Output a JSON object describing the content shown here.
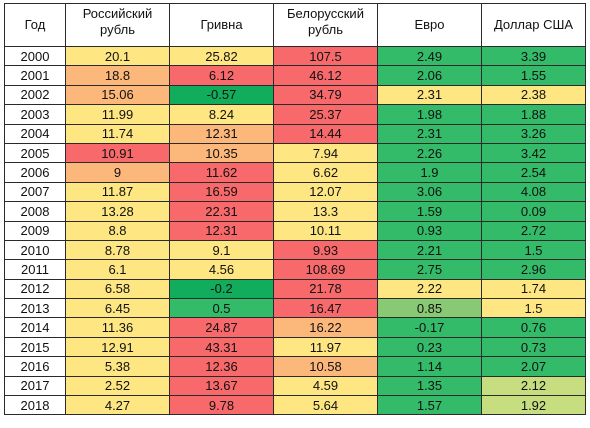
{
  "headers": [
    {
      "lines": [
        "Год"
      ]
    },
    {
      "lines": [
        "Российский",
        "рубль"
      ]
    },
    {
      "lines": [
        "Гривна"
      ]
    },
    {
      "lines": [
        "Белорусский",
        "рубль"
      ]
    },
    {
      "lines": [
        "Евро"
      ]
    },
    {
      "lines": [
        "Доллар США"
      ]
    }
  ],
  "colors": {
    "red": "#f8696b",
    "orange": "#fcb87a",
    "yellow": "#fee783",
    "light_green": "#c6dd80",
    "mid_green": "#8ac974",
    "green": "#34bb6a",
    "dark_green": "#12ad5c"
  },
  "rows": [
    {
      "year": "2000",
      "cells": [
        {
          "value": "20.1",
          "color": "yellow"
        },
        {
          "value": "25.82",
          "color": "yellow"
        },
        {
          "value": "107.5",
          "color": "red"
        },
        {
          "value": "2.49",
          "color": "green"
        },
        {
          "value": "3.39",
          "color": "green"
        }
      ]
    },
    {
      "year": "2001",
      "cells": [
        {
          "value": "18.8",
          "color": "orange"
        },
        {
          "value": "6.12",
          "color": "red"
        },
        {
          "value": "46.12",
          "color": "red"
        },
        {
          "value": "2.06",
          "color": "green"
        },
        {
          "value": "1.55",
          "color": "green"
        }
      ]
    },
    {
      "year": "2002",
      "cells": [
        {
          "value": "15.06",
          "color": "orange"
        },
        {
          "value": "-0.57",
          "color": "dark_green"
        },
        {
          "value": "34.79",
          "color": "red"
        },
        {
          "value": "2.31",
          "color": "yellow"
        },
        {
          "value": "2.38",
          "color": "yellow"
        }
      ]
    },
    {
      "year": "2003",
      "cells": [
        {
          "value": "11.99",
          "color": "yellow"
        },
        {
          "value": "8.24",
          "color": "yellow"
        },
        {
          "value": "25.37",
          "color": "red"
        },
        {
          "value": "1.98",
          "color": "green"
        },
        {
          "value": "1.88",
          "color": "green"
        }
      ]
    },
    {
      "year": "2004",
      "cells": [
        {
          "value": "11.74",
          "color": "yellow"
        },
        {
          "value": "12.31",
          "color": "orange"
        },
        {
          "value": "14.44",
          "color": "red"
        },
        {
          "value": "2.31",
          "color": "green"
        },
        {
          "value": "3.26",
          "color": "green"
        }
      ]
    },
    {
      "year": "2005",
      "cells": [
        {
          "value": "10.91",
          "color": "red"
        },
        {
          "value": "10.35",
          "color": "orange"
        },
        {
          "value": "7.94",
          "color": "yellow"
        },
        {
          "value": "2.26",
          "color": "green"
        },
        {
          "value": "3.42",
          "color": "green"
        }
      ]
    },
    {
      "year": "2006",
      "cells": [
        {
          "value": "9",
          "color": "orange"
        },
        {
          "value": "11.62",
          "color": "red"
        },
        {
          "value": "6.62",
          "color": "yellow"
        },
        {
          "value": "1.9",
          "color": "green"
        },
        {
          "value": "2.54",
          "color": "green"
        }
      ]
    },
    {
      "year": "2007",
      "cells": [
        {
          "value": "11.87",
          "color": "yellow"
        },
        {
          "value": "16.59",
          "color": "red"
        },
        {
          "value": "12.07",
          "color": "yellow"
        },
        {
          "value": "3.06",
          "color": "green"
        },
        {
          "value": "4.08",
          "color": "green"
        }
      ]
    },
    {
      "year": "2008",
      "cells": [
        {
          "value": "13.28",
          "color": "yellow"
        },
        {
          "value": "22.31",
          "color": "red"
        },
        {
          "value": "13.3",
          "color": "yellow"
        },
        {
          "value": "1.59",
          "color": "green"
        },
        {
          "value": "0.09",
          "color": "green"
        }
      ]
    },
    {
      "year": "2009",
      "cells": [
        {
          "value": "8.8",
          "color": "yellow"
        },
        {
          "value": "12.31",
          "color": "red"
        },
        {
          "value": "10.11",
          "color": "yellow"
        },
        {
          "value": "0.93",
          "color": "green"
        },
        {
          "value": "2.72",
          "color": "green"
        }
      ]
    },
    {
      "year": "2010",
      "cells": [
        {
          "value": "8.78",
          "color": "yellow"
        },
        {
          "value": "9.1",
          "color": "yellow"
        },
        {
          "value": "9.93",
          "color": "red"
        },
        {
          "value": "2.21",
          "color": "green"
        },
        {
          "value": "1.5",
          "color": "green"
        }
      ]
    },
    {
      "year": "2011",
      "cells": [
        {
          "value": "6.1",
          "color": "yellow"
        },
        {
          "value": "4.56",
          "color": "yellow"
        },
        {
          "value": "108.69",
          "color": "red"
        },
        {
          "value": "2.75",
          "color": "green"
        },
        {
          "value": "2.96",
          "color": "green"
        }
      ]
    },
    {
      "year": "2012",
      "cells": [
        {
          "value": "6.58",
          "color": "yellow"
        },
        {
          "value": "-0.2",
          "color": "dark_green"
        },
        {
          "value": "21.78",
          "color": "red"
        },
        {
          "value": "2.22",
          "color": "yellow"
        },
        {
          "value": "1.74",
          "color": "yellow"
        }
      ]
    },
    {
      "year": "2013",
      "cells": [
        {
          "value": "6.45",
          "color": "yellow"
        },
        {
          "value": "0.5",
          "color": "green"
        },
        {
          "value": "16.47",
          "color": "red"
        },
        {
          "value": "0.85",
          "color": "mid_green"
        },
        {
          "value": "1.5",
          "color": "yellow"
        }
      ]
    },
    {
      "year": "2014",
      "cells": [
        {
          "value": "11.36",
          "color": "yellow"
        },
        {
          "value": "24.87",
          "color": "red"
        },
        {
          "value": "16.22",
          "color": "orange"
        },
        {
          "value": "-0.17",
          "color": "green"
        },
        {
          "value": "0.76",
          "color": "green"
        }
      ]
    },
    {
      "year": "2015",
      "cells": [
        {
          "value": "12.91",
          "color": "yellow"
        },
        {
          "value": "43.31",
          "color": "red"
        },
        {
          "value": "11.97",
          "color": "yellow"
        },
        {
          "value": "0.23",
          "color": "green"
        },
        {
          "value": "0.73",
          "color": "green"
        }
      ]
    },
    {
      "year": "2016",
      "cells": [
        {
          "value": "5.38",
          "color": "yellow"
        },
        {
          "value": "12.36",
          "color": "red"
        },
        {
          "value": "10.58",
          "color": "orange"
        },
        {
          "value": "1.14",
          "color": "green"
        },
        {
          "value": "2.07",
          "color": "green"
        }
      ]
    },
    {
      "year": "2017",
      "cells": [
        {
          "value": "2.52",
          "color": "yellow"
        },
        {
          "value": "13.67",
          "color": "red"
        },
        {
          "value": "4.59",
          "color": "yellow"
        },
        {
          "value": "1.35",
          "color": "green"
        },
        {
          "value": "2.12",
          "color": "light_green"
        }
      ]
    },
    {
      "year": "2018",
      "cells": [
        {
          "value": "4.27",
          "color": "yellow"
        },
        {
          "value": "9.78",
          "color": "red"
        },
        {
          "value": "5.64",
          "color": "yellow"
        },
        {
          "value": "1.57",
          "color": "green"
        },
        {
          "value": "1.92",
          "color": "light_green"
        }
      ]
    }
  ]
}
